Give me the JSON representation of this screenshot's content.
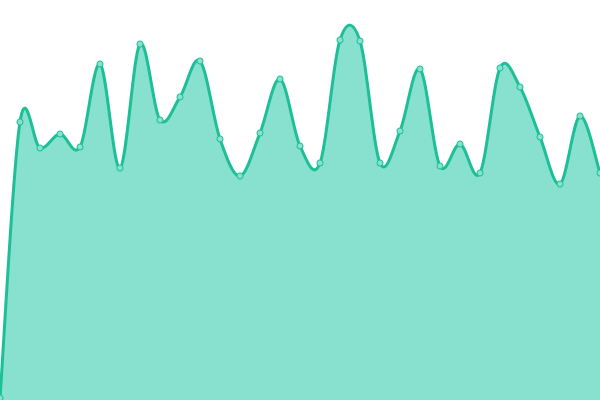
{
  "chart_data": {
    "type": "area",
    "x": [
      0,
      1,
      2,
      3,
      4,
      5,
      6,
      7,
      8,
      9,
      10,
      11,
      12,
      13,
      14,
      15,
      16,
      17,
      18,
      19,
      20,
      21,
      22,
      23,
      24,
      25,
      26,
      27,
      28,
      29,
      30
    ],
    "values": [
      2,
      278,
      252,
      266,
      253,
      336,
      232,
      356,
      280,
      303,
      339,
      261,
      224,
      267,
      321,
      254,
      237,
      360,
      359,
      237,
      269,
      331,
      234,
      256,
      227,
      332,
      313,
      263,
      216,
      284,
      227
    ],
    "ylim": [
      0,
      400
    ],
    "grid": false,
    "axes": false,
    "curve": "smooth",
    "colors": {
      "line": "#1dbf97",
      "fill": "#88e0cf",
      "marker_fill": "#88e0cf"
    }
  }
}
